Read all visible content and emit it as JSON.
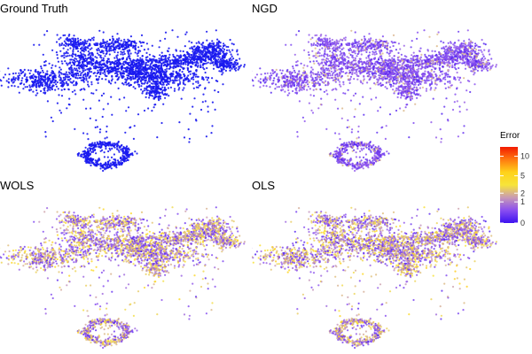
{
  "chart_data": [
    {
      "type": "scatter",
      "title": "Ground Truth",
      "color_mode": "solid",
      "point_color": "#1a1af0",
      "color_scale": false
    },
    {
      "type": "scatter",
      "title": "NGD",
      "color_mode": "error",
      "error_profile": "low",
      "color_scale": true
    },
    {
      "type": "scatter",
      "title": "WOLS",
      "color_mode": "error",
      "error_profile": "mixed",
      "color_scale": true
    },
    {
      "type": "scatter",
      "title": "OLS",
      "color_mode": "error",
      "error_profile": "mixed",
      "color_scale": true
    }
  ],
  "legend": {
    "title": "Error",
    "tick_labels": [
      "10",
      "5",
      "2",
      "1",
      "0"
    ],
    "tick_values": [
      10,
      5,
      2,
      1,
      0
    ],
    "scale": "sqrt",
    "range": [
      0,
      13
    ],
    "colors": [
      "#3d12f0",
      "#8a4ef0",
      "#c89ab5",
      "#f7e43a",
      "#ffd21a",
      "#ff7a10",
      "#f21a00"
    ]
  }
}
